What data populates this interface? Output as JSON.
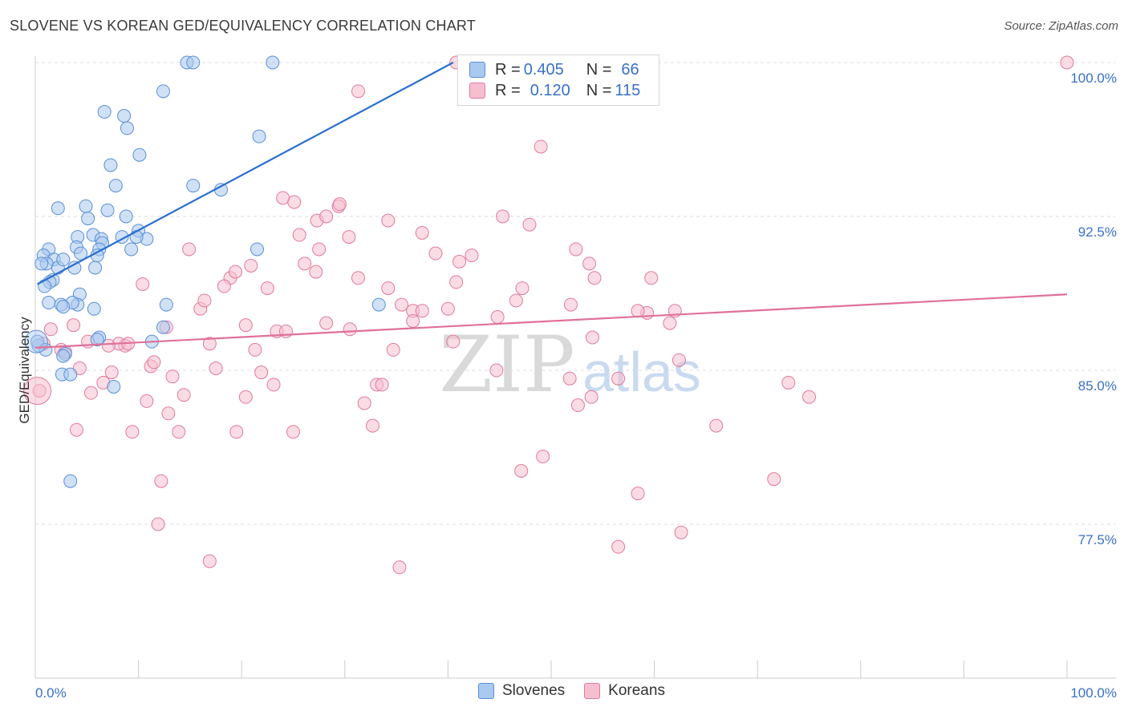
{
  "header": {
    "title": "SLOVENE VS KOREAN GED/EQUIVALENCY CORRELATION CHART",
    "source": "Source: ZipAtlas.com"
  },
  "watermark": {
    "zip": "ZIP",
    "atlas": "atlas"
  },
  "legend_top": {
    "rows": [
      {
        "r_label": "R = ",
        "r_value": "0.405",
        "n_label": "N = ",
        "n_value": "66"
      },
      {
        "r_label": "R = ",
        "r_value": "0.120",
        "n_label": "N = ",
        "n_value": "115"
      }
    ]
  },
  "legend_bottom": {
    "items": [
      "Slovenes",
      "Koreans"
    ]
  },
  "colors": {
    "blue_fill": "#a9c9ef",
    "blue_stroke": "#5b8fd6",
    "blue_line": "#2a6fd0",
    "pink_fill": "#f6bfd0",
    "pink_stroke": "#e07a9c",
    "pink_line": "#e0709a",
    "tick_label": "#3a70c8"
  },
  "chart_data": {
    "type": "scatter",
    "title": "SLOVENE VS KOREAN GED/EQUIVALENCY CORRELATION CHART",
    "xlabel": "",
    "ylabel": "GED/Equivalency",
    "xlim": [
      0,
      100
    ],
    "ylim": [
      70,
      101.5
    ],
    "x_tick_labels": [
      "0.0%",
      "100.0%"
    ],
    "y_ticks": [
      77.5,
      85.0,
      92.5,
      100.0
    ],
    "y_tick_labels": [
      "77.5%",
      "85.0%",
      "92.5%",
      "100.0%"
    ],
    "grid": true,
    "legend_placement": "bottom",
    "series": [
      {
        "name": "Slovenes",
        "color": "#5b8fd6",
        "trend": [
          [
            0.2,
            89.2
          ],
          [
            40.5,
            100.0
          ]
        ],
        "points": [
          [
            14.7,
            100.0
          ],
          [
            15.3,
            100.0
          ],
          [
            23.0,
            100.0
          ],
          [
            12.4,
            98.6
          ],
          [
            6.7,
            97.6
          ],
          [
            8.6,
            97.4
          ],
          [
            8.9,
            96.8
          ],
          [
            21.7,
            96.4
          ],
          [
            10.1,
            95.5
          ],
          [
            7.3,
            95.0
          ],
          [
            7.8,
            94.0
          ],
          [
            15.3,
            94.0
          ],
          [
            18.0,
            93.8
          ],
          [
            2.2,
            92.9
          ],
          [
            4.9,
            93.0
          ],
          [
            7.0,
            92.8
          ],
          [
            8.8,
            92.5
          ],
          [
            5.1,
            92.4
          ],
          [
            10.0,
            91.8
          ],
          [
            4.1,
            91.5
          ],
          [
            5.6,
            91.6
          ],
          [
            8.4,
            91.5
          ],
          [
            10.8,
            91.4
          ],
          [
            6.4,
            91.4
          ],
          [
            9.8,
            91.5
          ],
          [
            6.5,
            91.2
          ],
          [
            4.0,
            91.0
          ],
          [
            1.3,
            90.9
          ],
          [
            0.8,
            90.6
          ],
          [
            1.8,
            90.4
          ],
          [
            1.1,
            90.2
          ],
          [
            0.6,
            90.2
          ],
          [
            2.2,
            90.0
          ],
          [
            2.7,
            90.4
          ],
          [
            6.2,
            90.9
          ],
          [
            21.5,
            90.9
          ],
          [
            9.3,
            90.9
          ],
          [
            6.0,
            90.6
          ],
          [
            4.4,
            90.7
          ],
          [
            3.8,
            90.0
          ],
          [
            5.8,
            90.0
          ],
          [
            1.7,
            89.4
          ],
          [
            1.4,
            89.3
          ],
          [
            0.9,
            89.1
          ],
          [
            4.3,
            88.7
          ],
          [
            4.1,
            88.2
          ],
          [
            3.6,
            88.3
          ],
          [
            2.5,
            88.2
          ],
          [
            2.7,
            88.1
          ],
          [
            5.7,
            88.0
          ],
          [
            12.7,
            88.2
          ],
          [
            33.3,
            88.2
          ],
          [
            12.4,
            87.1
          ],
          [
            6.2,
            86.6
          ],
          [
            6.0,
            86.5
          ],
          [
            11.3,
            86.4
          ],
          [
            0.3,
            86.2
          ],
          [
            2.9,
            85.8
          ],
          [
            2.7,
            85.7
          ],
          [
            2.6,
            84.8
          ],
          [
            3.4,
            84.8
          ],
          [
            7.6,
            84.2
          ],
          [
            3.4,
            79.6
          ],
          [
            0.2,
            86.4
          ],
          [
            1.0,
            86.0
          ],
          [
            1.3,
            88.3
          ]
        ]
      },
      {
        "name": "Koreans",
        "color": "#e07a9c",
        "trend": [
          [
            0.0,
            86.1
          ],
          [
            100.0,
            88.7
          ]
        ],
        "points": [
          [
            40.8,
            100.0
          ],
          [
            100.0,
            100.0
          ],
          [
            31.3,
            98.6
          ],
          [
            49.0,
            95.9
          ],
          [
            24.0,
            93.4
          ],
          [
            25.1,
            93.2
          ],
          [
            29.4,
            93.0
          ],
          [
            29.5,
            93.1
          ],
          [
            27.3,
            92.3
          ],
          [
            28.2,
            92.5
          ],
          [
            34.2,
            92.3
          ],
          [
            45.3,
            92.5
          ],
          [
            47.9,
            92.1
          ],
          [
            25.6,
            91.6
          ],
          [
            37.5,
            91.7
          ],
          [
            30.4,
            91.5
          ],
          [
            14.9,
            90.9
          ],
          [
            27.5,
            90.9
          ],
          [
            38.8,
            90.7
          ],
          [
            42.3,
            90.6
          ],
          [
            52.4,
            90.9
          ],
          [
            41.1,
            90.3
          ],
          [
            26.1,
            90.2
          ],
          [
            27.2,
            89.8
          ],
          [
            20.9,
            90.1
          ],
          [
            53.7,
            90.2
          ],
          [
            18.9,
            89.5
          ],
          [
            19.4,
            89.8
          ],
          [
            31.3,
            89.5
          ],
          [
            34.2,
            89.0
          ],
          [
            47.2,
            89.0
          ],
          [
            59.7,
            89.5
          ],
          [
            54.2,
            89.5
          ],
          [
            10.4,
            89.2
          ],
          [
            22.5,
            89.0
          ],
          [
            18.3,
            89.1
          ],
          [
            40.8,
            89.3
          ],
          [
            35.5,
            88.2
          ],
          [
            36.6,
            87.9
          ],
          [
            40.0,
            88.0
          ],
          [
            46.6,
            88.4
          ],
          [
            51.9,
            88.2
          ],
          [
            16.0,
            88.0
          ],
          [
            16.4,
            88.4
          ],
          [
            59.3,
            87.8
          ],
          [
            58.4,
            87.9
          ],
          [
            62.0,
            87.9
          ],
          [
            12.7,
            87.1
          ],
          [
            20.4,
            87.2
          ],
          [
            28.2,
            87.3
          ],
          [
            36.6,
            87.4
          ],
          [
            30.5,
            87.0
          ],
          [
            23.4,
            86.9
          ],
          [
            24.3,
            86.9
          ],
          [
            61.5,
            87.3
          ],
          [
            54.0,
            86.6
          ],
          [
            37.5,
            87.9
          ],
          [
            44.8,
            87.6
          ],
          [
            1.5,
            87.0
          ],
          [
            3.7,
            87.2
          ],
          [
            5.1,
            86.4
          ],
          [
            8.7,
            86.2
          ],
          [
            8.1,
            86.3
          ],
          [
            9.0,
            86.3
          ],
          [
            16.9,
            86.3
          ],
          [
            40.5,
            86.4
          ],
          [
            2.5,
            86.0
          ],
          [
            2.9,
            85.9
          ],
          [
            11.2,
            85.2
          ],
          [
            11.5,
            85.4
          ],
          [
            21.3,
            86.0
          ],
          [
            34.7,
            86.0
          ],
          [
            62.4,
            85.5
          ],
          [
            4.3,
            85.1
          ],
          [
            7.4,
            84.9
          ],
          [
            13.3,
            84.7
          ],
          [
            17.5,
            85.1
          ],
          [
            21.9,
            84.9
          ],
          [
            44.7,
            85.0
          ],
          [
            56.5,
            84.6
          ],
          [
            6.6,
            84.4
          ],
          [
            23.1,
            84.3
          ],
          [
            33.1,
            84.3
          ],
          [
            33.6,
            84.3
          ],
          [
            51.8,
            84.6
          ],
          [
            73.0,
            84.4
          ],
          [
            0.4,
            84.0
          ],
          [
            10.8,
            83.5
          ],
          [
            14.4,
            83.8
          ],
          [
            20.4,
            83.7
          ],
          [
            5.4,
            83.9
          ],
          [
            12.9,
            82.9
          ],
          [
            31.9,
            83.4
          ],
          [
            52.6,
            83.3
          ],
          [
            53.9,
            83.7
          ],
          [
            75.0,
            83.7
          ],
          [
            32.7,
            82.3
          ],
          [
            66.0,
            82.3
          ],
          [
            4.0,
            82.1
          ],
          [
            9.4,
            82.0
          ],
          [
            13.9,
            82.0
          ],
          [
            19.5,
            82.0
          ],
          [
            25.0,
            82.0
          ],
          [
            49.2,
            80.8
          ],
          [
            47.1,
            80.1
          ],
          [
            71.6,
            79.7
          ],
          [
            12.2,
            79.6
          ],
          [
            58.4,
            79.0
          ],
          [
            62.6,
            77.1
          ],
          [
            11.9,
            77.5
          ],
          [
            56.5,
            76.4
          ],
          [
            16.9,
            75.7
          ],
          [
            35.3,
            75.4
          ],
          [
            7.1,
            86.2
          ],
          [
            0.8,
            86.3
          ]
        ]
      }
    ]
  }
}
